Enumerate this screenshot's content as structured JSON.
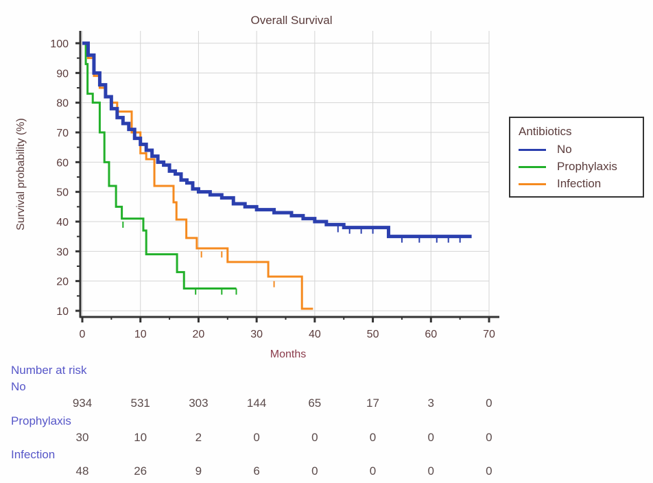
{
  "chart_data": {
    "type": "line",
    "subtype": "kaplan-meier step",
    "title": "Overall Survival",
    "xlabel": "Months",
    "ylabel": "Survival probability (%)",
    "xlim": [
      0,
      70
    ],
    "ylim": [
      10,
      100
    ],
    "xticks": [
      0,
      10,
      20,
      30,
      40,
      50,
      60,
      70
    ],
    "yticks": [
      10,
      20,
      30,
      40,
      50,
      60,
      70,
      80,
      90,
      100
    ],
    "grid": true,
    "legend": {
      "title": "Antibiotics",
      "placement": "right"
    },
    "series": [
      {
        "name": "No",
        "color": "#2b3fae",
        "steps": [
          [
            0,
            100
          ],
          [
            1,
            96
          ],
          [
            2,
            90
          ],
          [
            3,
            86
          ],
          [
            4,
            82
          ],
          [
            5,
            78
          ],
          [
            6,
            75
          ],
          [
            7,
            73
          ],
          [
            8,
            71
          ],
          [
            9,
            68
          ],
          [
            10,
            66
          ],
          [
            11,
            64
          ],
          [
            12,
            62
          ],
          [
            13,
            60
          ],
          [
            14,
            59
          ],
          [
            15,
            57
          ],
          [
            16,
            56
          ],
          [
            17,
            54
          ],
          [
            18,
            53
          ],
          [
            19,
            51
          ],
          [
            20,
            50
          ],
          [
            22,
            49
          ],
          [
            24,
            48
          ],
          [
            26,
            46
          ],
          [
            28,
            45
          ],
          [
            30,
            44
          ],
          [
            33,
            43
          ],
          [
            36,
            42
          ],
          [
            38,
            41
          ],
          [
            40,
            40
          ],
          [
            42,
            39
          ],
          [
            45,
            38
          ],
          [
            52.7,
            35
          ],
          [
            67,
            35
          ]
        ],
        "censored": [
          [
            44,
            38.5
          ],
          [
            46,
            38
          ],
          [
            48,
            38
          ],
          [
            50,
            38
          ],
          [
            55,
            35
          ],
          [
            58,
            35
          ],
          [
            61,
            35
          ],
          [
            63,
            35
          ],
          [
            65,
            35
          ]
        ]
      },
      {
        "name": "Prophylaxis",
        "color": "#22b02a",
        "steps": [
          [
            0,
            100
          ],
          [
            0.6,
            93
          ],
          [
            0.9,
            83
          ],
          [
            1.8,
            80
          ],
          [
            3,
            70
          ],
          [
            3.8,
            60
          ],
          [
            4.6,
            52
          ],
          [
            5.8,
            45
          ],
          [
            6.8,
            41
          ],
          [
            10.5,
            37
          ],
          [
            11,
            29
          ],
          [
            16.3,
            23
          ],
          [
            17.5,
            17.5
          ],
          [
            26.5,
            17.5
          ]
        ],
        "censored": [
          [
            7,
            40
          ],
          [
            19.5,
            17.5
          ],
          [
            24,
            17.5
          ],
          [
            26.5,
            17.5
          ]
        ]
      },
      {
        "name": "Infection",
        "color": "#f58a1f",
        "steps": [
          [
            0,
            100
          ],
          [
            1,
            95
          ],
          [
            2,
            89
          ],
          [
            3,
            85
          ],
          [
            4,
            82
          ],
          [
            5,
            80
          ],
          [
            6,
            77
          ],
          [
            8.5,
            70
          ],
          [
            10,
            63
          ],
          [
            11,
            61
          ],
          [
            12.4,
            52
          ],
          [
            15.7,
            46.5
          ],
          [
            16.2,
            40.7
          ],
          [
            17.9,
            34.5
          ],
          [
            19.7,
            31
          ],
          [
            25,
            26.4
          ],
          [
            32,
            21.5
          ],
          [
            37.8,
            10.7
          ],
          [
            39.7,
            10.7
          ]
        ],
        "censored": [
          [
            20.5,
            30
          ],
          [
            24,
            30
          ],
          [
            25,
            30
          ],
          [
            33,
            20
          ]
        ]
      }
    ]
  },
  "risk_table": {
    "title": "Number at risk",
    "rows": [
      {
        "label": "No",
        "values": [
          "934",
          "531",
          "303",
          "144",
          "65",
          "17",
          "3",
          "0"
        ]
      },
      {
        "label": "Prophylaxis",
        "values": [
          "30",
          "10",
          "2",
          "0",
          "0",
          "0",
          "0",
          "0"
        ]
      },
      {
        "label": "Infection",
        "values": [
          "48",
          "26",
          "9",
          "6",
          "0",
          "0",
          "0",
          "0"
        ]
      }
    ]
  }
}
